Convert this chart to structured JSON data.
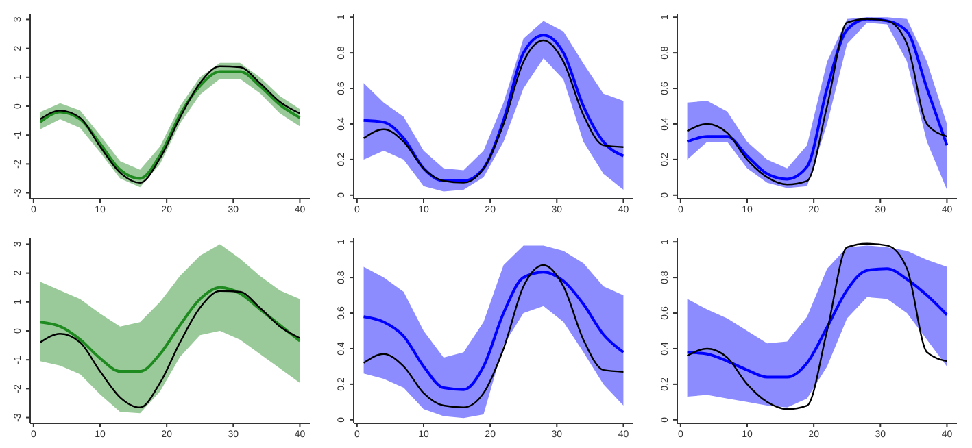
{
  "chart_data": [
    {
      "type": "line",
      "x": [
        1,
        4,
        7,
        10,
        13,
        16,
        19,
        22,
        25,
        28,
        31,
        34,
        37,
        40
      ],
      "xlim": [
        -0.5,
        41.5
      ],
      "xticks": [
        0,
        10,
        20,
        30,
        40
      ],
      "ylim": [
        -3.2,
        3.2
      ],
      "yticks": [
        -3,
        -2,
        -1,
        0,
        1,
        2,
        3
      ],
      "grid": false,
      "legend": false,
      "marker": "none",
      "series": [
        {
          "color": "#1f8a1f",
          "values": [
            -0.55,
            -0.2,
            -0.45,
            -1.3,
            -2.2,
            -2.5,
            -1.7,
            -0.3,
            0.7,
            1.2,
            1.2,
            0.7,
            0.05,
            -0.4
          ],
          "lower": [
            -0.8,
            -0.45,
            -0.75,
            -1.6,
            -2.5,
            -2.8,
            -2.0,
            -0.6,
            0.4,
            0.95,
            0.95,
            0.45,
            -0.25,
            -0.7
          ],
          "upper": [
            -0.2,
            0.1,
            -0.15,
            -1.0,
            -1.9,
            -2.2,
            -1.4,
            0.0,
            1.0,
            1.5,
            1.5,
            1.0,
            0.35,
            -0.1
          ]
        },
        {
          "color": "#000000",
          "values": [
            -0.45,
            -0.15,
            -0.4,
            -1.4,
            -2.3,
            -2.65,
            -1.8,
            -0.4,
            0.8,
            1.38,
            1.35,
            0.8,
            0.15,
            -0.25
          ]
        }
      ]
    },
    {
      "type": "line",
      "x": [
        1,
        4,
        7,
        10,
        13,
        16,
        19,
        22,
        25,
        28,
        31,
        34,
        37,
        40
      ],
      "xlim": [
        -0.5,
        41.5
      ],
      "xticks": [
        0,
        10,
        20,
        30,
        40
      ],
      "ylim": [
        -0.02,
        1.02
      ],
      "yticks": [
        0,
        0.2,
        0.4,
        0.6,
        0.8,
        1
      ],
      "grid": false,
      "legend": false,
      "marker": "none",
      "series": [
        {
          "color": "#0000ff",
          "values": [
            0.42,
            0.41,
            0.32,
            0.15,
            0.08,
            0.08,
            0.15,
            0.42,
            0.8,
            0.9,
            0.8,
            0.5,
            0.3,
            0.22
          ],
          "lower": [
            0.2,
            0.25,
            0.2,
            0.05,
            0.02,
            0.03,
            0.1,
            0.3,
            0.6,
            0.77,
            0.65,
            0.3,
            0.12,
            0.03
          ],
          "upper": [
            0.63,
            0.52,
            0.44,
            0.25,
            0.15,
            0.14,
            0.25,
            0.52,
            0.88,
            0.98,
            0.92,
            0.74,
            0.57,
            0.53
          ]
        },
        {
          "color": "#000000",
          "values": [
            0.32,
            0.37,
            0.3,
            0.15,
            0.08,
            0.07,
            0.15,
            0.4,
            0.75,
            0.87,
            0.75,
            0.45,
            0.28,
            0.27
          ]
        }
      ]
    },
    {
      "type": "line",
      "x": [
        1,
        4,
        7,
        10,
        13,
        16,
        19,
        22,
        25,
        28,
        31,
        34,
        37,
        40
      ],
      "xlim": [
        -0.5,
        41.5
      ],
      "xticks": [
        0,
        10,
        20,
        30,
        40
      ],
      "ylim": [
        -0.02,
        1.02
      ],
      "yticks": [
        0,
        0.2,
        0.4,
        0.6,
        0.8,
        1
      ],
      "grid": false,
      "legend": false,
      "marker": "none",
      "series": [
        {
          "color": "#0000ff",
          "values": [
            0.3,
            0.33,
            0.33,
            0.22,
            0.12,
            0.09,
            0.16,
            0.6,
            0.93,
            0.99,
            0.98,
            0.92,
            0.6,
            0.28
          ],
          "lower": [
            0.2,
            0.3,
            0.3,
            0.15,
            0.07,
            0.04,
            0.05,
            0.4,
            0.85,
            0.97,
            0.96,
            0.75,
            0.3,
            0.03
          ],
          "upper": [
            0.52,
            0.53,
            0.47,
            0.3,
            0.2,
            0.15,
            0.28,
            0.75,
            0.99,
            1.0,
            1.0,
            0.99,
            0.75,
            0.4
          ]
        },
        {
          "color": "#000000",
          "values": [
            0.36,
            0.4,
            0.35,
            0.2,
            0.1,
            0.06,
            0.08,
            0.5,
            0.97,
            0.99,
            0.98,
            0.85,
            0.4,
            0.33
          ]
        }
      ]
    },
    {
      "type": "line",
      "x": [
        1,
        4,
        7,
        10,
        13,
        16,
        19,
        22,
        25,
        28,
        31,
        34,
        37,
        40
      ],
      "xlim": [
        -0.5,
        41.5
      ],
      "xticks": [
        0,
        10,
        20,
        30,
        40
      ],
      "ylim": [
        -3.2,
        3.2
      ],
      "yticks": [
        -3,
        -2,
        -1,
        0,
        1,
        2,
        3
      ],
      "grid": false,
      "legend": false,
      "marker": "none",
      "series": [
        {
          "color": "#1f8a1f",
          "values": [
            0.3,
            0.15,
            -0.3,
            -0.95,
            -1.4,
            -1.4,
            -0.8,
            0.2,
            1.1,
            1.5,
            1.3,
            0.75,
            0.2,
            -0.35
          ],
          "lower": [
            -1.05,
            -1.2,
            -1.5,
            -2.2,
            -2.8,
            -2.85,
            -2.1,
            -0.9,
            -0.15,
            0.0,
            -0.3,
            -0.8,
            -1.3,
            -1.8
          ],
          "upper": [
            1.7,
            1.4,
            1.1,
            0.6,
            0.15,
            0.3,
            1.0,
            1.9,
            2.6,
            3.0,
            2.5,
            1.9,
            1.4,
            1.1
          ]
        },
        {
          "color": "#000000",
          "values": [
            -0.4,
            -0.1,
            -0.4,
            -1.4,
            -2.3,
            -2.65,
            -1.8,
            -0.4,
            0.8,
            1.38,
            1.35,
            0.8,
            0.15,
            -0.25
          ]
        }
      ]
    },
    {
      "type": "line",
      "x": [
        1,
        4,
        7,
        10,
        13,
        16,
        19,
        22,
        25,
        28,
        31,
        34,
        37,
        40
      ],
      "xlim": [
        -0.5,
        41.5
      ],
      "xticks": [
        0,
        10,
        20,
        30,
        40
      ],
      "ylim": [
        -0.02,
        1.02
      ],
      "yticks": [
        0,
        0.2,
        0.4,
        0.6,
        0.8,
        1
      ],
      "grid": false,
      "legend": false,
      "marker": "none",
      "series": [
        {
          "color": "#0000ff",
          "values": [
            0.58,
            0.55,
            0.47,
            0.3,
            0.18,
            0.17,
            0.3,
            0.6,
            0.8,
            0.83,
            0.78,
            0.65,
            0.48,
            0.38
          ],
          "lower": [
            0.26,
            0.23,
            0.18,
            0.06,
            0.02,
            0.01,
            0.03,
            0.42,
            0.6,
            0.64,
            0.55,
            0.38,
            0.2,
            0.08
          ],
          "upper": [
            0.86,
            0.8,
            0.72,
            0.5,
            0.35,
            0.38,
            0.55,
            0.87,
            0.98,
            0.98,
            0.95,
            0.88,
            0.75,
            0.7
          ]
        },
        {
          "color": "#000000",
          "values": [
            0.32,
            0.37,
            0.3,
            0.15,
            0.08,
            0.07,
            0.15,
            0.4,
            0.75,
            0.87,
            0.75,
            0.45,
            0.28,
            0.27
          ]
        }
      ]
    },
    {
      "type": "line",
      "x": [
        1,
        4,
        7,
        10,
        13,
        16,
        19,
        22,
        25,
        28,
        31,
        34,
        37,
        40
      ],
      "xlim": [
        -0.5,
        41.5
      ],
      "xticks": [
        0,
        10,
        20,
        30,
        40
      ],
      "ylim": [
        -0.02,
        1.02
      ],
      "yticks": [
        0,
        0.2,
        0.4,
        0.6,
        0.8,
        1
      ],
      "grid": false,
      "legend": false,
      "marker": "none",
      "series": [
        {
          "color": "#0000ff",
          "values": [
            0.38,
            0.37,
            0.33,
            0.28,
            0.24,
            0.24,
            0.32,
            0.52,
            0.73,
            0.84,
            0.85,
            0.79,
            0.7,
            0.59
          ],
          "lower": [
            0.13,
            0.14,
            0.12,
            0.1,
            0.08,
            0.07,
            0.12,
            0.3,
            0.57,
            0.69,
            0.68,
            0.6,
            0.45,
            0.3
          ],
          "upper": [
            0.68,
            0.62,
            0.57,
            0.5,
            0.43,
            0.44,
            0.58,
            0.85,
            0.97,
            0.98,
            0.97,
            0.95,
            0.9,
            0.86
          ]
        },
        {
          "color": "#000000",
          "values": [
            0.36,
            0.4,
            0.35,
            0.2,
            0.1,
            0.06,
            0.08,
            0.5,
            0.97,
            0.99,
            0.98,
            0.85,
            0.38,
            0.33
          ]
        }
      ]
    }
  ]
}
